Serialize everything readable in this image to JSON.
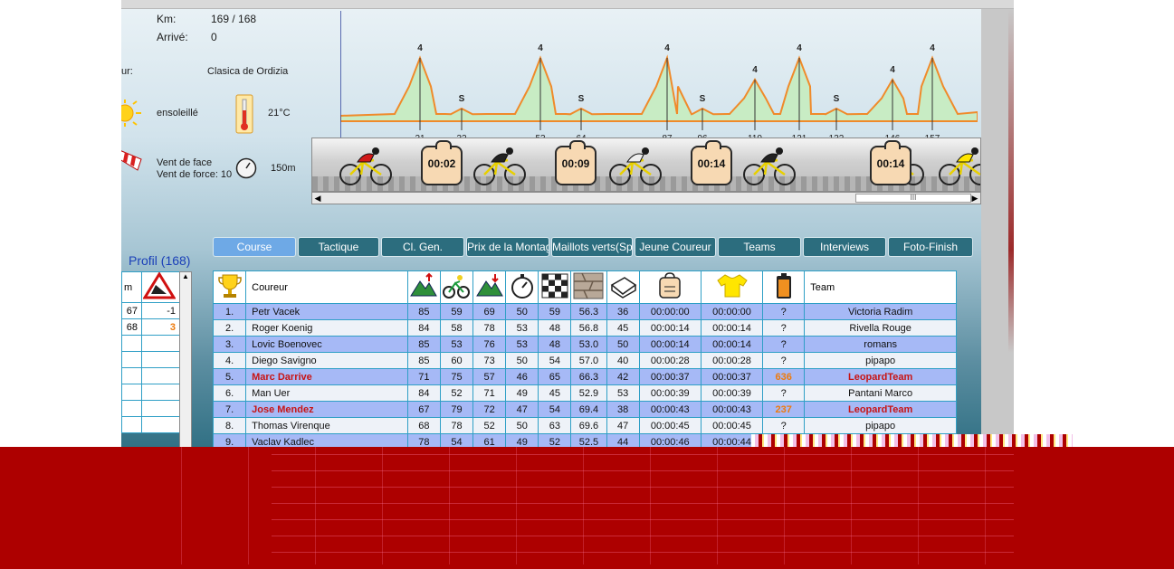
{
  "info": {
    "km_label": "Km:",
    "km_value": "169 / 168",
    "arrive_label": "Arrivé:",
    "arrive_value": "0",
    "tour_label": "ur:",
    "tour_value": "Clasica de Ordizia",
    "weather": "ensoleillé",
    "temperature": "21°C",
    "wind_label": "Vent de face",
    "wind_force": "Vent de force: 10",
    "wind_distance": "150m"
  },
  "profile_chart": {
    "markers": [
      {
        "km": "21",
        "tag": "4"
      },
      {
        "km": "32",
        "tag": "S"
      },
      {
        "km": "53",
        "tag": "4"
      },
      {
        "km": "64",
        "tag": "S"
      },
      {
        "km": "87",
        "tag": "4"
      },
      {
        "km": "96",
        "tag": "S"
      },
      {
        "km": "110",
        "tag": "4"
      },
      {
        "km": "121",
        "tag": "4"
      },
      {
        "km": "132",
        "tag": "S"
      },
      {
        "km": "146",
        "tag": "4"
      },
      {
        "km": "157",
        "tag": "4"
      }
    ],
    "fill_color": "#c8ecc4",
    "line_color": "#f08a2a"
  },
  "gap_tags": [
    "00:02",
    "00:09",
    "00:14",
    "00:14"
  ],
  "tabs": [
    {
      "label": "Course",
      "active": true
    },
    {
      "label": "Tactique",
      "active": false
    },
    {
      "label": "Cl. Gen.",
      "active": false
    },
    {
      "label": "Prix de la Montag",
      "active": false
    },
    {
      "label": "Maillots verts(Spr",
      "active": false
    },
    {
      "label": "Jeune Coureur",
      "active": false
    },
    {
      "label": "Teams",
      "active": false
    },
    {
      "label": "Interviews",
      "active": false
    },
    {
      "label": "Foto-Finish",
      "active": false
    }
  ],
  "profil": {
    "title": "Profil (168)",
    "header": "m",
    "rows": [
      {
        "a": "67",
        "b": "-1",
        "b_color": "#111111"
      },
      {
        "a": "68",
        "b": "3",
        "b_color": "#ee7a0c"
      }
    ]
  },
  "results": {
    "columns": {
      "coureur": "Coureur",
      "team": "Team"
    },
    "rows": [
      {
        "pos": "1.",
        "name": "Petr Vacek",
        "c1": "85",
        "c2": "59",
        "c3": "69",
        "c4": "50",
        "c5": "59",
        "c6": "56.3",
        "c7": "36",
        "t1": "00:00:00",
        "t2": "00:00:00",
        "e": "?",
        "team": "Victoria Radim",
        "hl": false
      },
      {
        "pos": "2.",
        "name": "Roger Koenig",
        "c1": "84",
        "c2": "58",
        "c3": "78",
        "c4": "53",
        "c5": "48",
        "c6": "56.8",
        "c7": "45",
        "t1": "00:00:14",
        "t2": "00:00:14",
        "e": "?",
        "team": "Rivella Rouge",
        "hl": false
      },
      {
        "pos": "3.",
        "name": "Lovic Boenovec",
        "c1": "85",
        "c2": "53",
        "c3": "76",
        "c4": "53",
        "c5": "48",
        "c6": "53.0",
        "c7": "50",
        "t1": "00:00:14",
        "t2": "00:00:14",
        "e": "?",
        "team": "romans",
        "hl": false
      },
      {
        "pos": "4.",
        "name": "Diego Savigno",
        "c1": "85",
        "c2": "60",
        "c3": "73",
        "c4": "50",
        "c5": "54",
        "c6": "57.0",
        "c7": "40",
        "t1": "00:00:28",
        "t2": "00:00:28",
        "e": "?",
        "team": "pipapo",
        "hl": false
      },
      {
        "pos": "5.",
        "name": "Marc Darrive",
        "c1": "71",
        "c2": "75",
        "c3": "57",
        "c4": "46",
        "c5": "65",
        "c6": "66.3",
        "c7": "42",
        "t1": "00:00:37",
        "t2": "00:00:37",
        "e": "636",
        "team": "LeopardTeam",
        "hl": true
      },
      {
        "pos": "6.",
        "name": "Man Uer",
        "c1": "84",
        "c2": "52",
        "c3": "71",
        "c4": "49",
        "c5": "45",
        "c6": "52.9",
        "c7": "53",
        "t1": "00:00:39",
        "t2": "00:00:39",
        "e": "?",
        "team": "Pantani Marco",
        "hl": false
      },
      {
        "pos": "7.",
        "name": "Jose Mendez",
        "c1": "67",
        "c2": "79",
        "c3": "72",
        "c4": "47",
        "c5": "54",
        "c6": "69.4",
        "c7": "38",
        "t1": "00:00:43",
        "t2": "00:00:43",
        "e": "237",
        "team": "LeopardTeam",
        "hl": true
      },
      {
        "pos": "8.",
        "name": "Thomas Virenque",
        "c1": "68",
        "c2": "78",
        "c3": "52",
        "c4": "50",
        "c5": "63",
        "c6": "69.6",
        "c7": "47",
        "t1": "00:00:45",
        "t2": "00:00:45",
        "e": "?",
        "team": "pipapo",
        "hl": false
      },
      {
        "pos": "9.",
        "name": "Vaclav Kadlec",
        "c1": "78",
        "c2": "54",
        "c3": "61",
        "c4": "49",
        "c5": "52",
        "c6": "52.5",
        "c7": "44",
        "t1": "00:00:46",
        "t2": "00:00:44",
        "e": "",
        "team": "",
        "hl": false
      }
    ]
  }
}
